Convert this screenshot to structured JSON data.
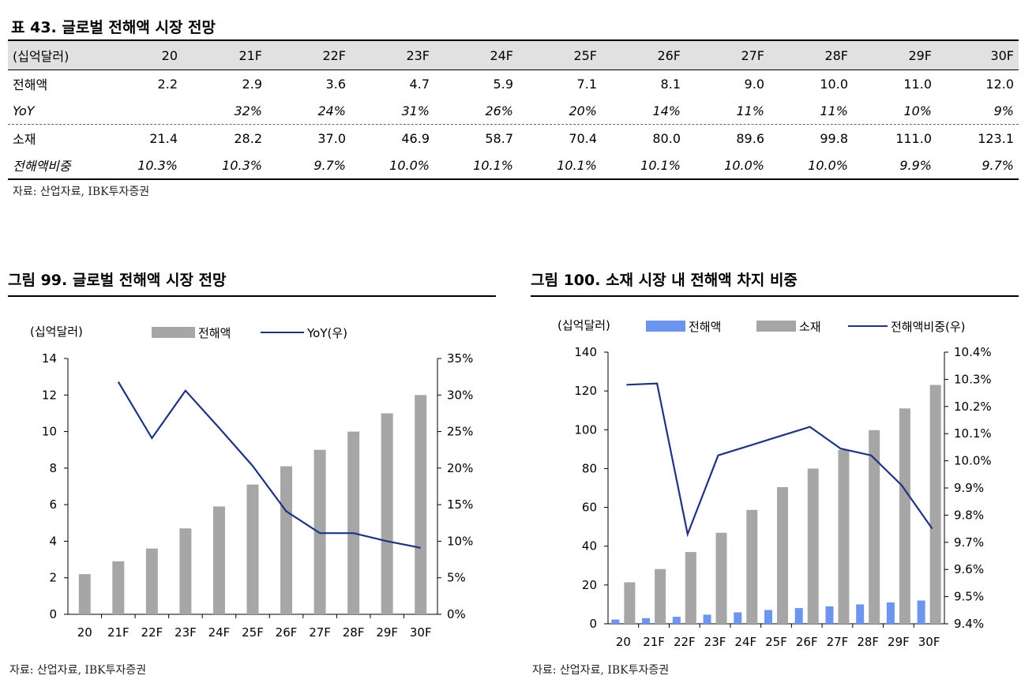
{
  "table": {
    "title": "표 43. 글로벌 전해액 시장 전망",
    "unit_label": "(십억달러)",
    "columns": [
      "20",
      "21F",
      "22F",
      "23F",
      "24F",
      "25F",
      "26F",
      "27F",
      "28F",
      "29F",
      "30F"
    ],
    "rows": [
      {
        "label": "전해액",
        "values": [
          "2.2",
          "2.9",
          "3.6",
          "4.7",
          "5.9",
          "7.1",
          "8.1",
          "9.0",
          "10.0",
          "11.0",
          "12.0"
        ]
      },
      {
        "label": "YoY",
        "values": [
          "",
          "32%",
          "24%",
          "31%",
          "26%",
          "20%",
          "14%",
          "11%",
          "11%",
          "10%",
          "9%"
        ]
      },
      {
        "label": "소재",
        "values": [
          "21.4",
          "28.2",
          "37.0",
          "46.9",
          "58.7",
          "70.4",
          "80.0",
          "89.6",
          "99.8",
          "111.0",
          "123.1"
        ]
      },
      {
        "label": "전해액비중",
        "values": [
          "10.3%",
          "10.3%",
          "9.7%",
          "10.0%",
          "10.1%",
          "10.1%",
          "10.1%",
          "10.0%",
          "10.0%",
          "9.9%",
          "9.7%"
        ]
      }
    ],
    "source": "자료: 산업자료, IBK투자증권"
  },
  "chart_data": [
    {
      "type": "bar",
      "title": "그림 99. 글로벌 전해액 시장 전망",
      "unit_label": "(십억달러)",
      "categories": [
        "20",
        "21F",
        "22F",
        "23F",
        "24F",
        "25F",
        "26F",
        "27F",
        "28F",
        "29F",
        "30F"
      ],
      "series": [
        {
          "name": "전해액",
          "type": "bar",
          "axis": "left",
          "color": "#a6a6a6",
          "values": [
            2.2,
            2.9,
            3.6,
            4.7,
            5.9,
            7.1,
            8.1,
            9.0,
            10.0,
            11.0,
            12.0
          ]
        },
        {
          "name": "YoY(우)",
          "type": "line",
          "axis": "right",
          "color": "#1f3480",
          "values": [
            null,
            31.8,
            24.1,
            30.6,
            25.5,
            20.3,
            14.1,
            11.1,
            11.1,
            10.0,
            9.1
          ]
        }
      ],
      "ylim": [
        0,
        14
      ],
      "yticks": [
        "0",
        "2",
        "4",
        "6",
        "8",
        "10",
        "12",
        "14"
      ],
      "y2lim": [
        0,
        35
      ],
      "y2ticks": [
        "0%",
        "5%",
        "10%",
        "15%",
        "20%",
        "25%",
        "30%",
        "35%"
      ],
      "legend": "top",
      "grid": false,
      "source": "자료: 산업자료, IBK투자증권"
    },
    {
      "type": "bar",
      "title": "그림 100. 소재 시장 내 전해액 차지 비중",
      "unit_label": "(십억달러)",
      "categories": [
        "20",
        "21F",
        "22F",
        "23F",
        "24F",
        "25F",
        "26F",
        "27F",
        "28F",
        "29F",
        "30F"
      ],
      "series": [
        {
          "name": "전해액",
          "type": "bar",
          "axis": "left",
          "color": "#6d95ee",
          "values": [
            2.2,
            2.9,
            3.6,
            4.7,
            5.9,
            7.1,
            8.1,
            9.0,
            10.0,
            11.0,
            12.0
          ]
        },
        {
          "name": "소재",
          "type": "bar",
          "axis": "left",
          "color": "#a6a6a6",
          "values": [
            21.4,
            28.2,
            37.0,
            46.9,
            58.7,
            70.4,
            80.0,
            89.6,
            99.8,
            111.0,
            123.1
          ]
        },
        {
          "name": "전해액비중(우)",
          "type": "line",
          "axis": "right",
          "color": "#1f3480",
          "values": [
            10.28,
            10.285,
            9.73,
            10.02,
            10.055,
            10.09,
            10.125,
            10.045,
            10.02,
            9.91,
            9.75
          ]
        }
      ],
      "ylim": [
        0,
        140
      ],
      "yticks": [
        "0",
        "20",
        "40",
        "60",
        "80",
        "100",
        "120",
        "140"
      ],
      "y2lim": [
        9.4,
        10.4
      ],
      "y2ticks": [
        "9.4%",
        "9.5%",
        "9.6%",
        "9.7%",
        "9.8%",
        "9.9%",
        "10.0%",
        "10.1%",
        "10.2%",
        "10.3%",
        "10.4%"
      ],
      "legend": "top",
      "grid": false,
      "source": "자료: 산업자료, IBK투자증권"
    }
  ]
}
